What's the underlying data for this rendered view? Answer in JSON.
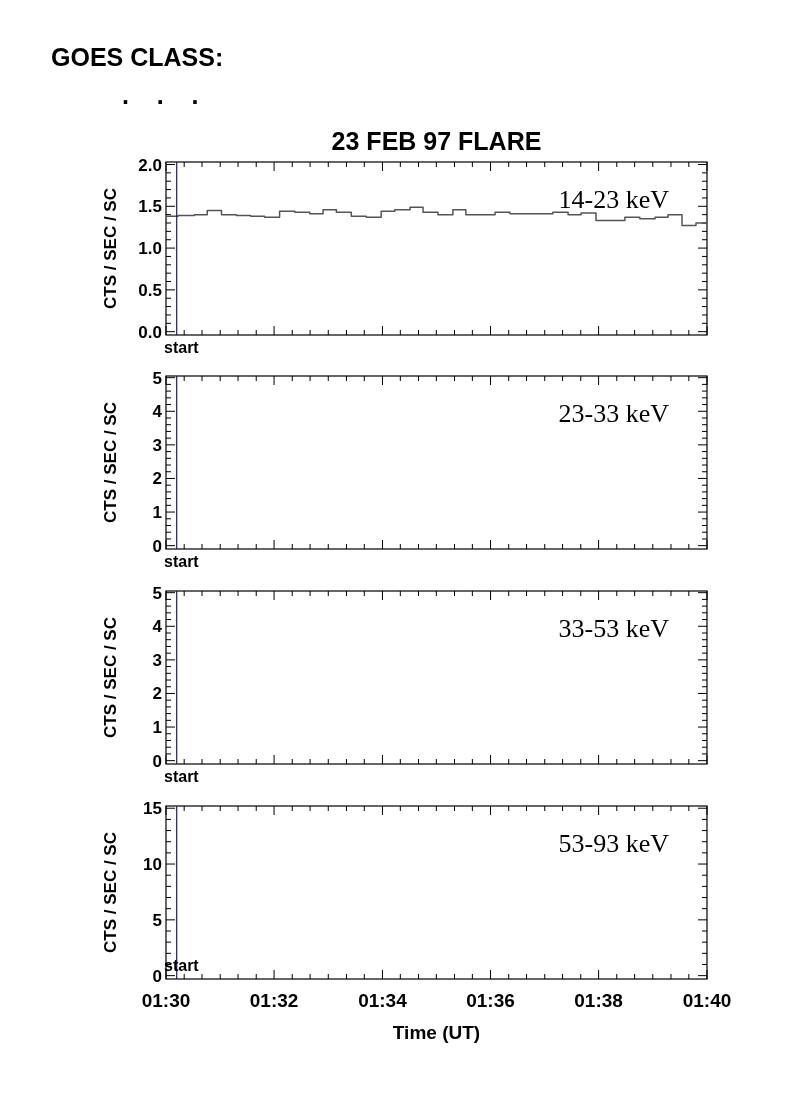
{
  "chart_data": [
    {
      "type": "step",
      "title": "23 FEB 97 FLARE",
      "ylabel": "CTS / SEC / SC",
      "annotations": [
        "GOES CLASS:",
        ". . .",
        "14-23 keV"
      ],
      "tick_labels": "y",
      "xlim": [
        1.5,
        1.6667
      ],
      "ylim": [
        -0.04,
        2.03
      ],
      "xticks": [
        {
          "value": 1.5,
          "label": null
        },
        {
          "value": 1.5056,
          "label": null
        },
        {
          "value": 1.5111,
          "label": null
        },
        {
          "value": 1.5167,
          "label": null
        },
        {
          "value": 1.5222,
          "label": null
        },
        {
          "value": 1.5278,
          "label": null
        },
        {
          "value": 1.5333,
          "label": null
        },
        {
          "value": 1.5389,
          "label": null
        },
        {
          "value": 1.5444,
          "label": null
        },
        {
          "value": 1.55,
          "label": null
        },
        {
          "value": 1.5556,
          "label": null
        },
        {
          "value": 1.5611,
          "label": null
        },
        {
          "value": 1.5667,
          "label": null
        },
        {
          "value": 1.5722,
          "label": null
        },
        {
          "value": 1.5778,
          "label": null
        },
        {
          "value": 1.5833,
          "label": null
        },
        {
          "value": 1.5889,
          "label": null
        },
        {
          "value": 1.5944,
          "label": null
        },
        {
          "value": 1.6,
          "label": null
        },
        {
          "value": 1.6056,
          "label": null
        },
        {
          "value": 1.6111,
          "label": null
        },
        {
          "value": 1.6167,
          "label": null
        },
        {
          "value": 1.6222,
          "label": null
        },
        {
          "value": 1.6278,
          "label": null
        },
        {
          "value": 1.6333,
          "label": null
        },
        {
          "value": 1.6389,
          "label": null
        },
        {
          "value": 1.6444,
          "label": null
        },
        {
          "value": 1.65,
          "label": null
        },
        {
          "value": 1.6556,
          "label": null
        },
        {
          "value": 1.6611,
          "label": null
        },
        {
          "value": 1.6667,
          "label": null
        }
      ],
      "yticks": [
        {
          "value": 0,
          "label": "0.0"
        },
        {
          "value": 0.1,
          "label": null
        },
        {
          "value": 0.2,
          "label": null
        },
        {
          "value": 0.3,
          "label": null
        },
        {
          "value": 0.4,
          "label": null
        },
        {
          "value": 0.5,
          "label": "0.5"
        },
        {
          "value": 0.6,
          "label": null
        },
        {
          "value": 0.7,
          "label": null
        },
        {
          "value": 0.8,
          "label": null
        },
        {
          "value": 0.9,
          "label": null
        },
        {
          "value": 1,
          "label": "1.0"
        },
        {
          "value": 1.1,
          "label": null
        },
        {
          "value": 1.2,
          "label": null
        },
        {
          "value": 1.3,
          "label": null
        },
        {
          "value": 1.4,
          "label": null
        },
        {
          "value": 1.5,
          "label": "1.5"
        },
        {
          "value": 1.6,
          "label": null
        },
        {
          "value": 1.7,
          "label": null
        },
        {
          "value": 1.8,
          "label": null
        },
        {
          "value": 1.9,
          "label": null
        },
        {
          "value": 2,
          "label": "2.0"
        }
      ],
      "ref_lines": [
        {
          "axis": "x",
          "value": 1.5033,
          "label": "start",
          "color": "#1a1a6e"
        }
      ],
      "series": [
        {
          "color": "#555555",
          "x": [
            1.5,
            1.5037,
            1.5088,
            1.5127,
            1.5171,
            1.5217,
            1.5261,
            1.5304,
            1.535,
            1.5397,
            1.5443,
            1.5484,
            1.5525,
            1.5571,
            1.5617,
            1.5663,
            1.5705,
            1.5752,
            1.5792,
            1.5838,
            1.5884,
            1.5924,
            1.6014,
            1.606,
            1.6192,
            1.6239,
            1.6279,
            1.6325,
            1.6414,
            1.646,
            1.6507,
            1.6547,
            1.659,
            1.6633,
            1.6667
          ],
          "values": [
            1.38,
            1.39,
            1.4,
            1.45,
            1.4,
            1.39,
            1.38,
            1.37,
            1.44,
            1.43,
            1.41,
            1.46,
            1.43,
            1.38,
            1.37,
            1.44,
            1.46,
            1.49,
            1.43,
            1.4,
            1.46,
            1.4,
            1.43,
            1.41,
            1.43,
            1.4,
            1.42,
            1.33,
            1.37,
            1.35,
            1.37,
            1.4,
            1.27,
            1.3,
            1.3
          ]
        }
      ]
    },
    {
      "type": "step",
      "ylabel": "CTS / SEC / SC",
      "annotations": [
        "23-33 keV"
      ],
      "tick_labels": "y",
      "xlim": [
        1.5,
        1.6667
      ],
      "ylim": [
        -0.1,
        5.05
      ],
      "xticks": [
        {
          "value": 1.5,
          "label": null
        },
        {
          "value": 1.5056,
          "label": null
        },
        {
          "value": 1.5111,
          "label": null
        },
        {
          "value": 1.5167,
          "label": null
        },
        {
          "value": 1.5222,
          "label": null
        },
        {
          "value": 1.5278,
          "label": null
        },
        {
          "value": 1.5333,
          "label": null
        },
        {
          "value": 1.5389,
          "label": null
        },
        {
          "value": 1.5444,
          "label": null
        },
        {
          "value": 1.55,
          "label": null
        },
        {
          "value": 1.5556,
          "label": null
        },
        {
          "value": 1.5611,
          "label": null
        },
        {
          "value": 1.5667,
          "label": null
        },
        {
          "value": 1.5722,
          "label": null
        },
        {
          "value": 1.5778,
          "label": null
        },
        {
          "value": 1.5833,
          "label": null
        },
        {
          "value": 1.5889,
          "label": null
        },
        {
          "value": 1.5944,
          "label": null
        },
        {
          "value": 1.6,
          "label": null
        },
        {
          "value": 1.6056,
          "label": null
        },
        {
          "value": 1.6111,
          "label": null
        },
        {
          "value": 1.6167,
          "label": null
        },
        {
          "value": 1.6222,
          "label": null
        },
        {
          "value": 1.6278,
          "label": null
        },
        {
          "value": 1.6333,
          "label": null
        },
        {
          "value": 1.6389,
          "label": null
        },
        {
          "value": 1.6444,
          "label": null
        },
        {
          "value": 1.65,
          "label": null
        },
        {
          "value": 1.6556,
          "label": null
        },
        {
          "value": 1.6611,
          "label": null
        },
        {
          "value": 1.6667,
          "label": null
        }
      ],
      "yticks": [
        0,
        {
          "value": 0.2,
          "label": null
        },
        {
          "value": 0.4,
          "label": null
        },
        {
          "value": 0.6,
          "label": null
        },
        {
          "value": 0.8,
          "label": null
        },
        1,
        {
          "value": 1.2,
          "label": null
        },
        {
          "value": 1.4,
          "label": null
        },
        {
          "value": 1.6,
          "label": null
        },
        {
          "value": 1.8,
          "label": null
        },
        2,
        {
          "value": 2.2,
          "label": null
        },
        {
          "value": 2.4,
          "label": null
        },
        {
          "value": 2.6,
          "label": null
        },
        {
          "value": 2.8,
          "label": null
        },
        3,
        {
          "value": 3.2,
          "label": null
        },
        {
          "value": 3.4,
          "label": null
        },
        {
          "value": 3.6,
          "label": null
        },
        {
          "value": 3.8,
          "label": null
        },
        4,
        {
          "value": 4.2,
          "label": null
        },
        {
          "value": 4.4,
          "label": null
        },
        {
          "value": 4.6,
          "label": null
        },
        {
          "value": 4.8,
          "label": null
        },
        5
      ],
      "ref_lines": [
        {
          "axis": "x",
          "value": 1.5033,
          "label": "start",
          "color": "#1a1a6e"
        }
      ]
    },
    {
      "type": "step",
      "ylabel": "CTS / SEC / SC",
      "annotations": [
        "33-53 keV"
      ],
      "tick_labels": "y",
      "xlim": [
        1.5,
        1.6667
      ],
      "ylim": [
        -0.1,
        5.05
      ],
      "xticks": [
        {
          "value": 1.5,
          "label": null
        },
        {
          "value": 1.5056,
          "label": null
        },
        {
          "value": 1.5111,
          "label": null
        },
        {
          "value": 1.5167,
          "label": null
        },
        {
          "value": 1.5222,
          "label": null
        },
        {
          "value": 1.5278,
          "label": null
        },
        {
          "value": 1.5333,
          "label": null
        },
        {
          "value": 1.5389,
          "label": null
        },
        {
          "value": 1.5444,
          "label": null
        },
        {
          "value": 1.55,
          "label": null
        },
        {
          "value": 1.5556,
          "label": null
        },
        {
          "value": 1.5611,
          "label": null
        },
        {
          "value": 1.5667,
          "label": null
        },
        {
          "value": 1.5722,
          "label": null
        },
        {
          "value": 1.5778,
          "label": null
        },
        {
          "value": 1.5833,
          "label": null
        },
        {
          "value": 1.5889,
          "label": null
        },
        {
          "value": 1.5944,
          "label": null
        },
        {
          "value": 1.6,
          "label": null
        },
        {
          "value": 1.6056,
          "label": null
        },
        {
          "value": 1.6111,
          "label": null
        },
        {
          "value": 1.6167,
          "label": null
        },
        {
          "value": 1.6222,
          "label": null
        },
        {
          "value": 1.6278,
          "label": null
        },
        {
          "value": 1.6333,
          "label": null
        },
        {
          "value": 1.6389,
          "label": null
        },
        {
          "value": 1.6444,
          "label": null
        },
        {
          "value": 1.65,
          "label": null
        },
        {
          "value": 1.6556,
          "label": null
        },
        {
          "value": 1.6611,
          "label": null
        },
        {
          "value": 1.6667,
          "label": null
        }
      ],
      "yticks": [
        0,
        {
          "value": 0.2,
          "label": null
        },
        {
          "value": 0.4,
          "label": null
        },
        {
          "value": 0.6,
          "label": null
        },
        {
          "value": 0.8,
          "label": null
        },
        1,
        {
          "value": 1.2,
          "label": null
        },
        {
          "value": 1.4,
          "label": null
        },
        {
          "value": 1.6,
          "label": null
        },
        {
          "value": 1.8,
          "label": null
        },
        2,
        {
          "value": 2.2,
          "label": null
        },
        {
          "value": 2.4,
          "label": null
        },
        {
          "value": 2.6,
          "label": null
        },
        {
          "value": 2.8,
          "label": null
        },
        3,
        {
          "value": 3.2,
          "label": null
        },
        {
          "value": 3.4,
          "label": null
        },
        {
          "value": 3.6,
          "label": null
        },
        {
          "value": 3.8,
          "label": null
        },
        4,
        {
          "value": 4.2,
          "label": null
        },
        {
          "value": 4.4,
          "label": null
        },
        {
          "value": 4.6,
          "label": null
        },
        {
          "value": 4.8,
          "label": null
        },
        5
      ],
      "ref_lines": [
        {
          "axis": "x",
          "value": 1.5033,
          "label": "start",
          "color": "#1a1a6e"
        }
      ]
    },
    {
      "type": "step",
      "ylabel": "CTS / SEC / SC",
      "xlabel": "Time (UT)",
      "annotations": [
        "53-93 keV"
      ],
      "xlim": [
        1.5,
        1.6667
      ],
      "ylim": [
        -0.3,
        15.2
      ],
      "xticks": [
        {
          "value": 1.5,
          "label": "01:30"
        },
        {
          "value": 1.5056,
          "label": null
        },
        {
          "value": 1.5111,
          "label": null
        },
        {
          "value": 1.5167,
          "label": null
        },
        {
          "value": 1.5222,
          "label": null
        },
        {
          "value": 1.5278,
          "label": null
        },
        {
          "value": 1.5333,
          "label": "01:32"
        },
        {
          "value": 1.5389,
          "label": null
        },
        {
          "value": 1.5444,
          "label": null
        },
        {
          "value": 1.55,
          "label": null
        },
        {
          "value": 1.5556,
          "label": null
        },
        {
          "value": 1.5611,
          "label": null
        },
        {
          "value": 1.5667,
          "label": "01:34"
        },
        {
          "value": 1.5722,
          "label": null
        },
        {
          "value": 1.5778,
          "label": null
        },
        {
          "value": 1.5833,
          "label": null
        },
        {
          "value": 1.5889,
          "label": null
        },
        {
          "value": 1.5944,
          "label": null
        },
        {
          "value": 1.6,
          "label": "01:36"
        },
        {
          "value": 1.6056,
          "label": null
        },
        {
          "value": 1.6111,
          "label": null
        },
        {
          "value": 1.6167,
          "label": null
        },
        {
          "value": 1.6222,
          "label": null
        },
        {
          "value": 1.6278,
          "label": null
        },
        {
          "value": 1.6333,
          "label": "01:38"
        },
        {
          "value": 1.6389,
          "label": null
        },
        {
          "value": 1.6444,
          "label": null
        },
        {
          "value": 1.65,
          "label": null
        },
        {
          "value": 1.6556,
          "label": null
        },
        {
          "value": 1.6611,
          "label": null
        },
        {
          "value": 1.6667,
          "label": "01:40"
        }
      ],
      "yticks": [
        0,
        {
          "value": 1,
          "label": null
        },
        {
          "value": 2,
          "label": null
        },
        {
          "value": 3,
          "label": null
        },
        {
          "value": 4,
          "label": null
        },
        5,
        {
          "value": 6,
          "label": null
        },
        {
          "value": 7,
          "label": null
        },
        {
          "value": 8,
          "label": null
        },
        {
          "value": 9,
          "label": null
        },
        10,
        {
          "value": 11,
          "label": null
        },
        {
          "value": 12,
          "label": null
        },
        {
          "value": 13,
          "label": null
        },
        {
          "value": 14,
          "label": null
        },
        15
      ],
      "ref_lines": [
        {
          "axis": "x",
          "value": 1.5033,
          "label": "start",
          "color": "#1a1a6e"
        }
      ]
    }
  ]
}
